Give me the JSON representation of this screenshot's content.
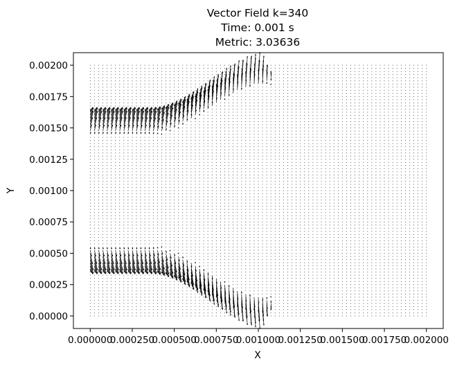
{
  "chart_data": {
    "type": "quiver",
    "title": [
      "Vector Field k=340",
      "Time: 0.001 s",
      "Metric: 3.03636"
    ],
    "xlabel": "X",
    "ylabel": "Y",
    "xlim": [
      -0.0001,
      0.0021
    ],
    "ylim": [
      -0.0001,
      0.0021
    ],
    "x_ticks": [
      0.0,
      0.00025,
      0.0005,
      0.00075,
      0.001,
      0.00125,
      0.0015,
      0.00175,
      0.002
    ],
    "x_tick_labels": [
      "0.000000",
      "0.000250",
      "0.000500",
      "0.000750",
      "0.001000",
      "0.001250",
      "0.001500",
      "0.001750",
      "0.002000"
    ],
    "y_ticks": [
      0.0,
      0.00025,
      0.0005,
      0.00075,
      0.001,
      0.00125,
      0.0015,
      0.00175,
      0.002
    ],
    "y_tick_labels": [
      "0.00000",
      "0.00025",
      "0.00050",
      "0.00075",
      "0.00100",
      "0.00125",
      "0.00150",
      "0.00175",
      "0.00200"
    ],
    "grid": false,
    "legend": "none",
    "grid_points": {
      "x_range": [
        0.0,
        0.002
      ],
      "y_range": [
        0.0,
        0.002
      ],
      "nx": 81,
      "ny": 81
    },
    "jets": [
      {
        "name_hint": "upper",
        "inlet_x_end": 0.0005,
        "inlet_y_range": [
          0.00142,
          0.00166
        ],
        "deflect_to_y": 0.0019,
        "fade_x": 0.00105
      },
      {
        "name_hint": "lower",
        "inlet_x_end": 0.0005,
        "inlet_y_range": [
          0.00034,
          0.00058
        ],
        "deflect_to_y": 0.0001,
        "fade_x": 0.00105
      }
    ]
  }
}
